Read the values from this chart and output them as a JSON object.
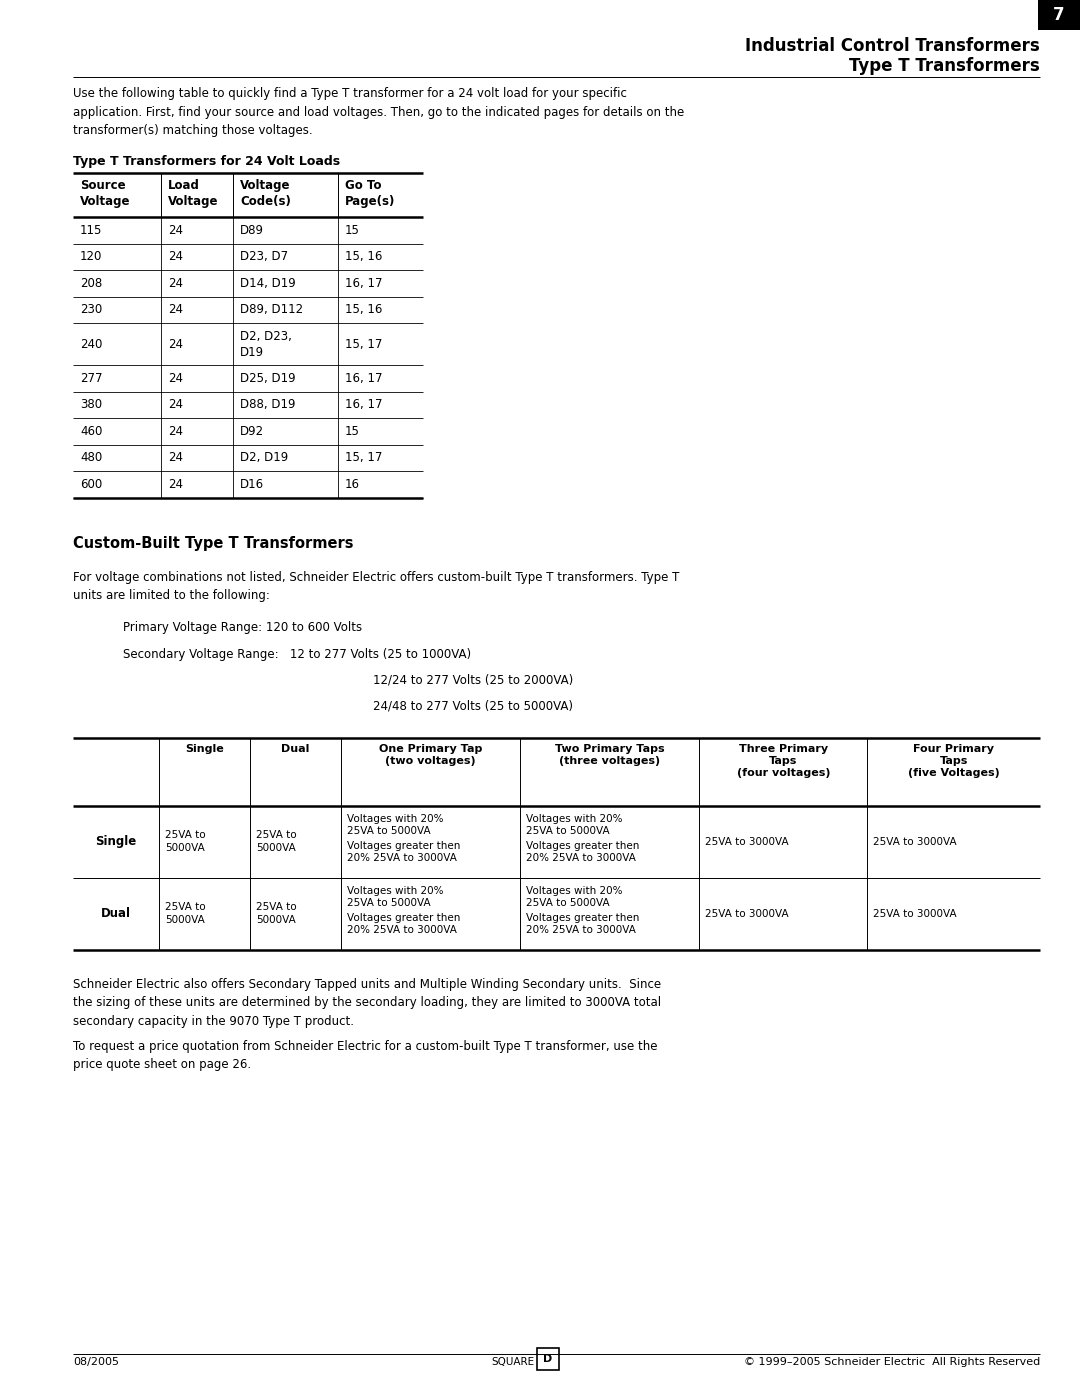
{
  "page_width": 10.8,
  "page_height": 13.97,
  "background_color": "#ffffff",
  "header_title_line1": "Industrial Control Transformers",
  "header_title_line2": "Type T Transformers",
  "page_number": "7",
  "intro_text": "Use the following table to quickly find a Type T transformer for a 24 volt load for your specific\napplication. First, find your source and load voltages. Then, go to the indicated pages for details on the\ntransformer(s) matching those voltages.",
  "table1_title": "Type T Transformers for 24 Volt Loads",
  "table1_headers": [
    "Source\nVoltage",
    "Load\nVoltage",
    "Voltage\nCode(s)",
    "Go To\nPage(s)"
  ],
  "table1_rows": [
    [
      "115",
      "24",
      "D89",
      "15"
    ],
    [
      "120",
      "24",
      "D23, D7",
      "15, 16"
    ],
    [
      "208",
      "24",
      "D14, D19",
      "16, 17"
    ],
    [
      "230",
      "24",
      "D89, D112",
      "15, 16"
    ],
    [
      "240",
      "24",
      "D2, D23,\nD19",
      "15, 17"
    ],
    [
      "277",
      "24",
      "D25, D19",
      "16, 17"
    ],
    [
      "380",
      "24",
      "D88, D19",
      "16, 17"
    ],
    [
      "460",
      "24",
      "D92",
      "15"
    ],
    [
      "480",
      "24",
      "D2, D19",
      "15, 17"
    ],
    [
      "600",
      "24",
      "D16",
      "16"
    ]
  ],
  "section2_title": "Custom-Built Type T Transformers",
  "section2_para": "For voltage combinations not listed, Schneider Electric offers custom-built Type T transformers. Type T\nunits are limited to the following:",
  "bullet1": "Primary Voltage Range: 120 to 600 Volts",
  "bullet2_label": "Secondary Voltage Range:",
  "bullet2_line1": "12 to 277 Volts (25 to 1000VA)",
  "bullet2_line2": "12/24 to 277 Volts (25 to 2000VA)",
  "bullet2_line3": "24/48 to 277 Volts (25 to 5000VA)",
  "table2_col_headers": [
    "",
    "Single",
    "Dual",
    "One Primary Tap\n(two voltages)",
    "Two Primary Taps\n(three voltages)",
    "Three Primary\nTaps\n(four voltages)",
    "Four Primary\nTaps\n(five Voltages)"
  ],
  "table2_row_single_label": "Single",
  "table2_row_dual_label": "Dual",
  "table2_single_dual_va": "25VA to\n5000VA",
  "table2_onetap_text1": "Voltages with 20%\n25VA to 5000VA",
  "table2_onetap_text2": "Voltages greater then\n20% 25VA to 3000VA",
  "table2_threetap": "25VA to 3000VA",
  "table2_fourtap": "25VA to 3000VA",
  "footer_para1": "Schneider Electric also offers Secondary Tapped units and Multiple Winding Secondary units.  Since\nthe sizing of these units are determined by the secondary loading, they are limited to 3000VA total\nsecondary capacity in the 9070 Type T product.",
  "footer_para2": "To request a price quotation from Schneider Electric for a custom-built Type T transformer, use the\nprice quote sheet on page 26.",
  "footer_date": "08/2005",
  "footer_copyright": "© 1999–2005 Schneider Electric  All Rights Reserved",
  "footer_logo_text1": "SQUARE",
  "footer_logo_text2": "D"
}
